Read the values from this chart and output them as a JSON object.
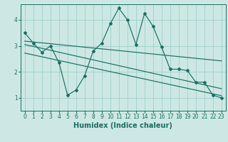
{
  "title": "",
  "xlabel": "Humidex (Indice chaleur)",
  "background_color": "#cde8e4",
  "grid_color": "#9ecfca",
  "line_color": "#1a6e62",
  "xlim": [
    -0.5,
    23.5
  ],
  "ylim": [
    0.5,
    4.6
  ],
  "yticks": [
    1,
    2,
    3,
    4
  ],
  "xticks": [
    0,
    1,
    2,
    3,
    4,
    5,
    6,
    7,
    8,
    9,
    10,
    11,
    12,
    13,
    14,
    15,
    16,
    17,
    18,
    19,
    20,
    21,
    22,
    23
  ],
  "main_line_x": [
    0,
    1,
    2,
    3,
    4,
    5,
    6,
    7,
    8,
    9,
    10,
    11,
    12,
    13,
    14,
    15,
    16,
    17,
    18,
    19,
    20,
    21,
    22,
    23
  ],
  "main_line_y": [
    3.5,
    3.1,
    2.75,
    3.0,
    2.35,
    1.1,
    1.3,
    1.85,
    2.8,
    3.1,
    3.85,
    4.45,
    4.0,
    3.05,
    4.25,
    3.75,
    2.95,
    2.1,
    2.1,
    2.05,
    1.6,
    1.6,
    1.1,
    1.0
  ],
  "trend_lines": [
    {
      "x0": 0,
      "y0": 3.05,
      "x1": 23,
      "y1": 1.35
    },
    {
      "x0": 0,
      "y0": 2.72,
      "x1": 23,
      "y1": 1.08
    },
    {
      "x0": 0,
      "y0": 3.18,
      "x1": 23,
      "y1": 2.42
    }
  ],
  "tick_fontsize": 5.5,
  "xlabel_fontsize": 7
}
